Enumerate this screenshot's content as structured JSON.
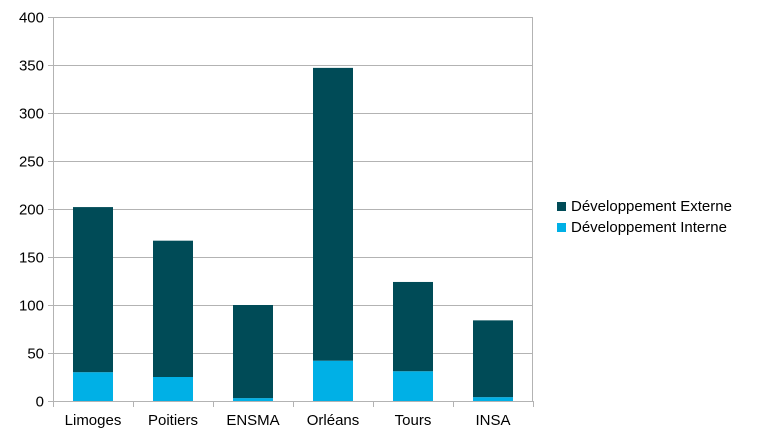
{
  "chart_data": {
    "type": "bar",
    "stacked": true,
    "categories": [
      "Limoges",
      "Poitiers",
      "ENSMA",
      "Orléans",
      "Tours",
      "INSA"
    ],
    "series": [
      {
        "name": "Développement Interne",
        "values": [
          30,
          25,
          3,
          42,
          31,
          4
        ],
        "color": "#00b0e6"
      },
      {
        "name": "Développement Externe",
        "values": [
          172,
          142,
          97,
          305,
          93,
          80
        ],
        "color": "#004b57"
      }
    ],
    "totals": [
      202,
      167,
      100,
      347,
      124,
      84
    ],
    "ylim": [
      0,
      400
    ],
    "yticks": [
      0,
      50,
      100,
      150,
      200,
      250,
      300,
      350,
      400
    ],
    "grid": true,
    "legend_position": "right",
    "legend_order": [
      "Développement Externe",
      "Développement Interne"
    ],
    "title": "",
    "xlabel": "",
    "ylabel": ""
  }
}
